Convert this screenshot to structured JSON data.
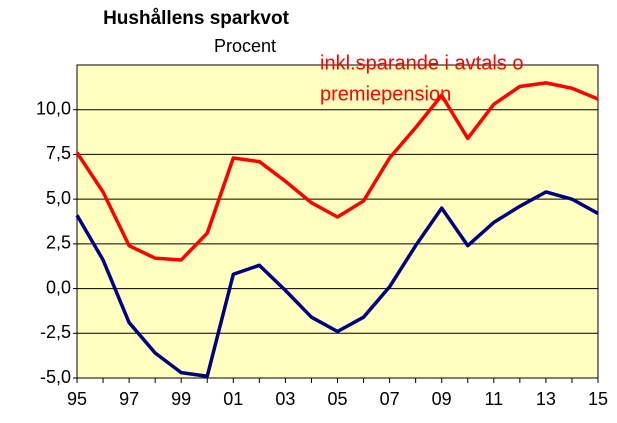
{
  "chart_data": {
    "type": "line",
    "title": "Hushållens sparkvot",
    "subtitle": "Procent",
    "annotations": [
      "inkl.sparande i avtals o",
      "premiepension"
    ],
    "annotation_color": "#ff0000",
    "categories": [
      "95",
      null,
      "97",
      null,
      "99",
      null,
      "01",
      null,
      "03",
      null,
      "05",
      null,
      "07",
      null,
      "09",
      null,
      "11",
      null,
      "13",
      null,
      "15"
    ],
    "series": [
      {
        "color": "#ff0000",
        "values": [
          7.6,
          5.4,
          2.4,
          1.7,
          1.6,
          3.1,
          7.3,
          7.1,
          6.0,
          4.8,
          4.0,
          4.9,
          7.3,
          9.0,
          10.8,
          8.4,
          10.3,
          11.3,
          11.5,
          11.2,
          10.6
        ]
      },
      {
        "color": "#000080",
        "values": [
          4.1,
          1.6,
          -1.9,
          -3.6,
          -4.7,
          -4.9,
          0.8,
          1.3,
          -0.1,
          -1.6,
          -2.4,
          -1.6,
          0.1,
          2.4,
          4.5,
          2.4,
          3.7,
          4.6,
          5.4,
          5.0,
          4.2
        ]
      }
    ],
    "ylim": [
      -5,
      12.5
    ],
    "yticks": [
      {
        "value": -5,
        "label": "-5,0"
      },
      {
        "value": -2.5,
        "label": "-2,5"
      },
      {
        "value": 0,
        "label": "0,0"
      },
      {
        "value": 2.5,
        "label": "2,5"
      },
      {
        "value": 5,
        "label": "5,0"
      },
      {
        "value": 7.5,
        "label": "7,5"
      },
      {
        "value": 10,
        "label": "10,0"
      }
    ],
    "grid": true,
    "background": "#ffffc0"
  }
}
